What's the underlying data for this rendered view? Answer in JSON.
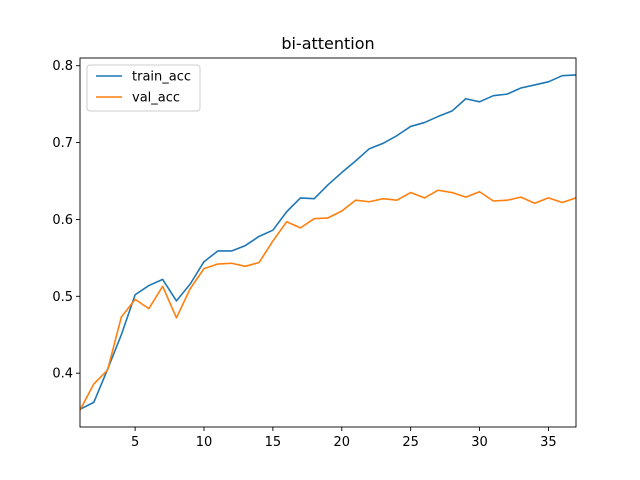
{
  "chart_data": {
    "type": "line",
    "title": "bi-attention",
    "xlabel": "",
    "ylabel": "",
    "xlim": [
      1,
      37
    ],
    "ylim": [
      0.33,
      0.81
    ],
    "x_ticks": [
      5,
      10,
      15,
      20,
      25,
      30,
      35
    ],
    "y_ticks": [
      0.4,
      0.5,
      0.6,
      0.7,
      0.8
    ],
    "legend_position": "upper-left",
    "grid": false,
    "x": [
      1,
      2,
      3,
      4,
      5,
      6,
      7,
      8,
      9,
      10,
      11,
      12,
      13,
      14,
      15,
      16,
      17,
      18,
      19,
      20,
      21,
      22,
      23,
      24,
      25,
      26,
      27,
      28,
      29,
      30,
      31,
      32,
      33,
      34,
      35,
      36,
      37
    ],
    "series": [
      {
        "name": "train_acc",
        "color": "#1f77b4",
        "values": [
          0.353,
          0.362,
          0.405,
          0.45,
          0.502,
          0.514,
          0.522,
          0.494,
          0.516,
          0.545,
          0.559,
          0.559,
          0.566,
          0.578,
          0.586,
          0.61,
          0.628,
          0.627,
          0.645,
          0.661,
          0.676,
          0.692,
          0.699,
          0.709,
          0.721,
          0.726,
          0.734,
          0.741,
          0.757,
          0.753,
          0.761,
          0.763,
          0.771,
          0.775,
          0.779,
          0.787,
          0.788
        ]
      },
      {
        "name": "val_acc",
        "color": "#ff7f0e",
        "values": [
          0.352,
          0.386,
          0.404,
          0.473,
          0.496,
          0.484,
          0.513,
          0.472,
          0.51,
          0.536,
          0.542,
          0.543,
          0.539,
          0.544,
          0.572,
          0.597,
          0.589,
          0.601,
          0.602,
          0.611,
          0.625,
          0.623,
          0.627,
          0.625,
          0.635,
          0.628,
          0.638,
          0.635,
          0.629,
          0.636,
          0.624,
          0.625,
          0.629,
          0.621,
          0.628,
          0.622,
          0.628
        ]
      }
    ]
  }
}
